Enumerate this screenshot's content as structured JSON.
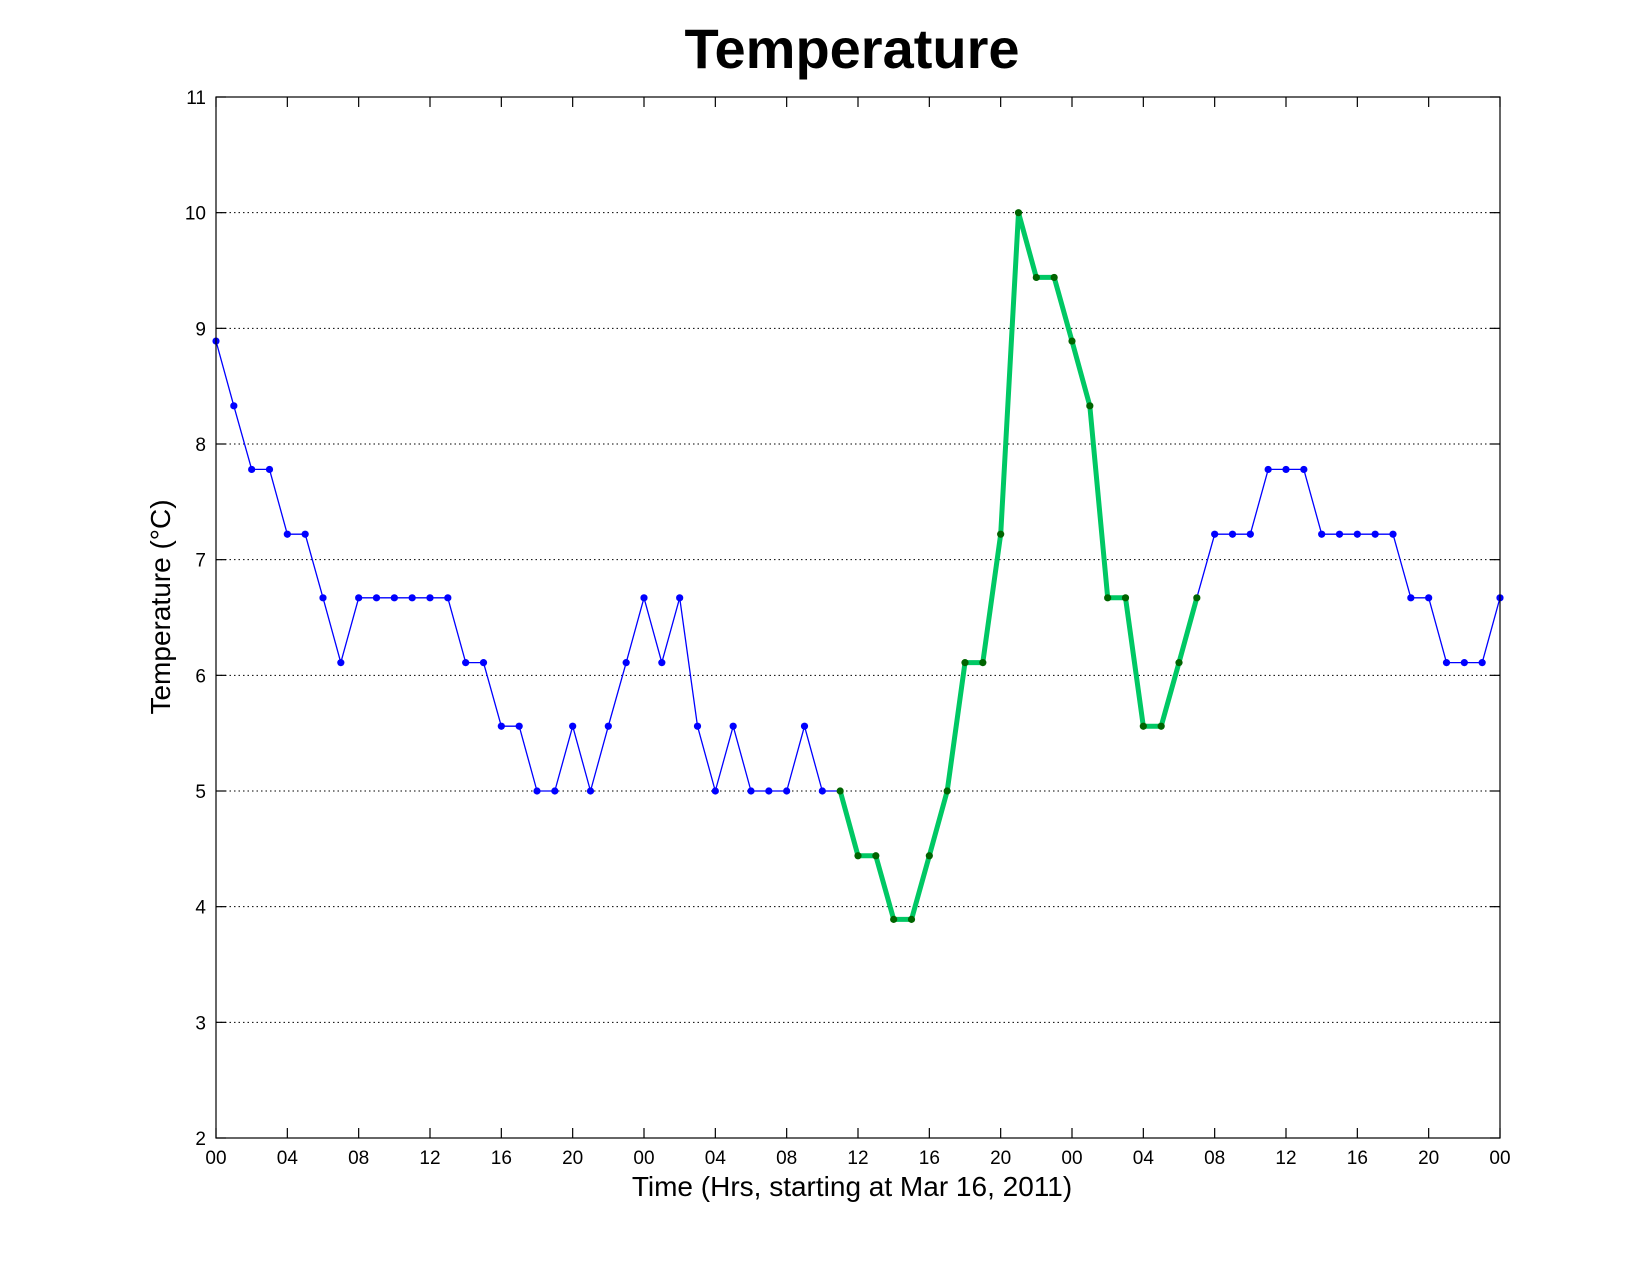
{
  "chart_data": {
    "type": "line",
    "title": "Temperature",
    "xlabel": "Time (Hrs, starting at Mar 16, 2011)",
    "ylabel": "Temperature (°C)",
    "xlim": [
      0,
      72
    ],
    "ylim": [
      2,
      11
    ],
    "yticks": [
      2,
      3,
      4,
      5,
      6,
      7,
      8,
      9,
      10,
      11
    ],
    "xticks": [
      0,
      4,
      8,
      12,
      16,
      20,
      24,
      28,
      32,
      36,
      40,
      44,
      48,
      52,
      56,
      60,
      64,
      68,
      72
    ],
    "xtick_labels": [
      "00",
      "04",
      "08",
      "12",
      "16",
      "20",
      "00",
      "04",
      "08",
      "12",
      "16",
      "20",
      "00",
      "04",
      "08",
      "12",
      "16",
      "20",
      "00"
    ],
    "grid": "y-dotted",
    "highlight_range": [
      35,
      55
    ],
    "colors": {
      "series": "#0000ff",
      "highlight_line": "#00c864",
      "highlight_marker": "#006400"
    },
    "series": [
      {
        "x": [
          0,
          1,
          2,
          3,
          4,
          5,
          6,
          7,
          8,
          9,
          10,
          11,
          12,
          13,
          14,
          15,
          16,
          17,
          18,
          19,
          20,
          21,
          22,
          23,
          24,
          25,
          26,
          27,
          28,
          29,
          30,
          31,
          32,
          33,
          34,
          35,
          36,
          37,
          38,
          39,
          40,
          41,
          42,
          43,
          44,
          45,
          46,
          47,
          48,
          49,
          50,
          51,
          52,
          53,
          54,
          55,
          56,
          57,
          58,
          59,
          60,
          61,
          62,
          63,
          64,
          65,
          66,
          67,
          68,
          69,
          70,
          71,
          72
        ],
        "y": [
          8.89,
          8.33,
          7.78,
          7.78,
          7.22,
          7.22,
          6.67,
          6.11,
          6.67,
          6.67,
          6.67,
          6.67,
          6.67,
          6.67,
          6.11,
          6.11,
          5.56,
          5.56,
          5.0,
          5.0,
          5.56,
          5.0,
          5.56,
          6.11,
          6.67,
          6.11,
          6.67,
          5.56,
          5.0,
          5.56,
          5.0,
          5.0,
          5.0,
          5.56,
          5.0,
          5.0,
          4.44,
          4.44,
          3.89,
          3.89,
          4.44,
          5.0,
          6.11,
          6.11,
          7.22,
          10.0,
          9.44,
          9.44,
          8.89,
          8.33,
          6.67,
          6.67,
          5.56,
          5.56,
          6.11,
          6.67,
          7.22,
          7.22,
          7.22,
          7.78,
          7.78,
          7.78,
          7.22,
          7.22,
          7.22,
          7.22,
          7.22,
          6.67,
          6.67,
          6.11,
          6.11,
          6.11,
          6.67
        ]
      }
    ]
  }
}
